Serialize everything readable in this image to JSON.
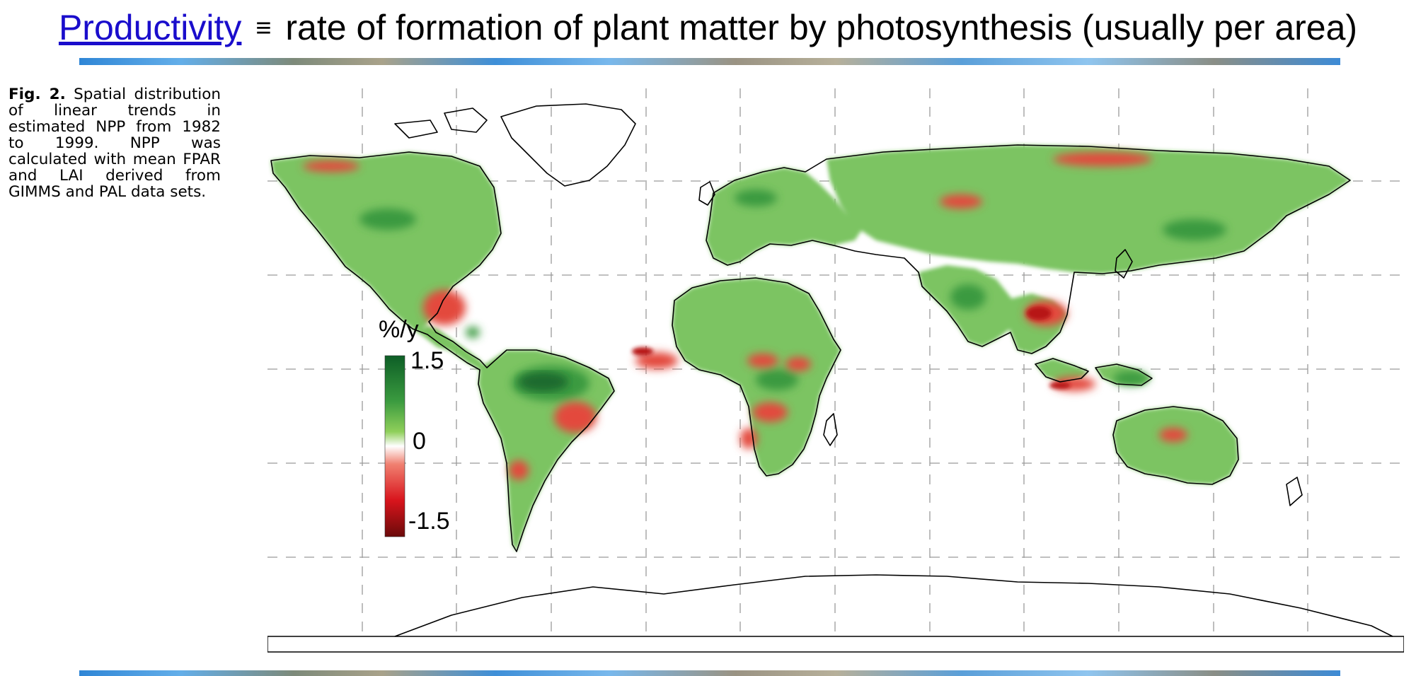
{
  "header": {
    "term": "Productivity",
    "equiv_symbol": "≡",
    "definition": "rate of formation of plant matter by photosynthesis (usually per area)"
  },
  "caption": {
    "figure_label": "Fig. 2.",
    "text": "Spatial distribution of linear trends in estimated NPP from 1982 to 1999. NPP was calculated with mean FPAR and LAI derived from GIMMS and PAL data sets."
  },
  "map": {
    "projection": "equirectangular world map",
    "grid": "dashed lines",
    "colorbar": {
      "unit_label": "%/y",
      "max_label": "1.5",
      "mid_label": "0",
      "min_label": "-1.5",
      "colors": [
        "#0d5e26",
        "#3a9a3f",
        "#8fcf5a",
        "#ffffff",
        "#f08070",
        "#d8141c",
        "#6a0a0a"
      ]
    },
    "colors": {
      "increase": "#4caa3c",
      "strong_increase": "#1f7a35",
      "decrease": "#e03a32",
      "strong_decrease": "#a01010",
      "land_outline": "#000000"
    }
  }
}
